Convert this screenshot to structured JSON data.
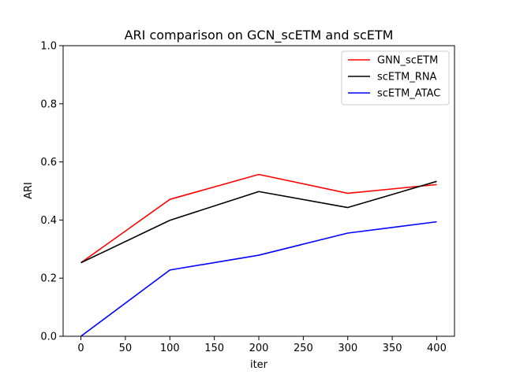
{
  "chart_data": {
    "type": "line",
    "title": "ARI comparison on GCN_scETM and scETM",
    "xlabel": "iter",
    "ylabel": "ARI",
    "x": [
      0,
      100,
      200,
      300,
      400
    ],
    "xlim": [
      -20,
      420
    ],
    "ylim": [
      0.0,
      1.0
    ],
    "xticks": [
      0,
      50,
      100,
      150,
      200,
      250,
      300,
      350,
      400
    ],
    "yticks": [
      0.0,
      0.2,
      0.4,
      0.6,
      0.8,
      1.0
    ],
    "xtick_labels": [
      "0",
      "50",
      "100",
      "150",
      "200",
      "250",
      "300",
      "350",
      "400"
    ],
    "ytick_labels": [
      "0.0",
      "0.2",
      "0.4",
      "0.6",
      "0.8",
      "1.0"
    ],
    "grid": false,
    "legend_position": "top-right",
    "series": [
      {
        "name": "GNN_scETM",
        "color": "#ff0000",
        "values": [
          0.253,
          0.471,
          0.557,
          0.492,
          0.522
        ]
      },
      {
        "name": "scETM_RNA",
        "color": "#000000",
        "values": [
          0.253,
          0.399,
          0.498,
          0.443,
          0.533
        ]
      },
      {
        "name": "scETM_ATAC",
        "color": "#0000ff",
        "values": [
          0.0,
          0.228,
          0.279,
          0.355,
          0.394
        ]
      }
    ]
  }
}
